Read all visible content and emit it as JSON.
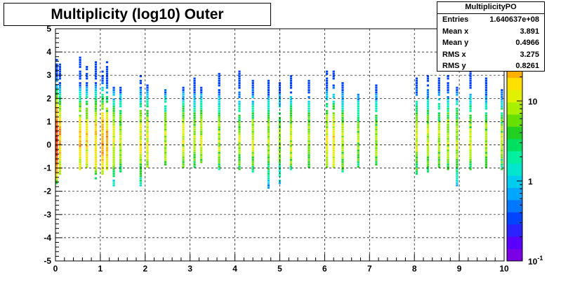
{
  "chart_data": {
    "type": "heatmap",
    "title": "Multiplicity (log10) Outer",
    "xlim": [
      0,
      10
    ],
    "ylim": [
      -5,
      5
    ],
    "x_ticks": [
      "0",
      "1",
      "2",
      "3",
      "4",
      "5",
      "6",
      "7",
      "8",
      "9",
      "10"
    ],
    "y_ticks": [
      "-5",
      "-4",
      "-3",
      "-2",
      "-1",
      "0",
      "1",
      "2",
      "3",
      "4",
      "5"
    ],
    "grid": true,
    "colorbar": {
      "scale": "log",
      "labels": [
        "10",
        "1",
        "10^-1"
      ]
    },
    "columns": [
      {
        "x": 0.03,
        "y_min": -1.7,
        "y_max": 3.7,
        "peak": 60
      },
      {
        "x": 0.1,
        "y_min": -1.3,
        "y_max": 3.5,
        "peak": 25
      },
      {
        "x": 0.55,
        "y_min": -1.1,
        "y_max": 3.8,
        "peak": 22
      },
      {
        "x": 0.7,
        "y_min": -1.0,
        "y_max": 3.4,
        "peak": 18
      },
      {
        "x": 0.9,
        "y_min": -1.5,
        "y_max": 3.6,
        "peak": 20
      },
      {
        "x": 1.05,
        "y_min": -1.3,
        "y_max": 3.2,
        "peak": 30
      },
      {
        "x": 1.15,
        "y_min": -1.1,
        "y_max": 3.6,
        "peak": 25
      },
      {
        "x": 1.3,
        "y_min": -1.8,
        "y_max": 2.5,
        "peak": 12
      },
      {
        "x": 1.45,
        "y_min": -1.2,
        "y_max": 2.5,
        "peak": 10
      },
      {
        "x": 1.9,
        "y_min": -1.8,
        "y_max": 3.1,
        "peak": 14
      },
      {
        "x": 2.05,
        "y_min": -1.0,
        "y_max": 2.6,
        "peak": 12
      },
      {
        "x": 2.45,
        "y_min": -0.9,
        "y_max": 2.4,
        "peak": 10
      },
      {
        "x": 2.85,
        "y_min": -1.0,
        "y_max": 2.5,
        "peak": 11
      },
      {
        "x": 3.1,
        "y_min": -1.0,
        "y_max": 2.9,
        "peak": 8
      },
      {
        "x": 3.25,
        "y_min": -0.8,
        "y_max": 2.5,
        "peak": 10
      },
      {
        "x": 3.65,
        "y_min": -1.1,
        "y_max": 3.1,
        "peak": 9
      },
      {
        "x": 4.1,
        "y_min": -1.1,
        "y_max": 3.2,
        "peak": 8
      },
      {
        "x": 4.4,
        "y_min": -1.2,
        "y_max": 2.8,
        "peak": 9
      },
      {
        "x": 4.75,
        "y_min": -1.9,
        "y_max": 2.8,
        "peak": 8
      },
      {
        "x": 5.0,
        "y_min": -1.7,
        "y_max": 2.7,
        "peak": 7
      },
      {
        "x": 5.25,
        "y_min": -1.1,
        "y_max": 3.0,
        "peak": 10
      },
      {
        "x": 5.65,
        "y_min": -1.0,
        "y_max": 2.8,
        "peak": 8
      },
      {
        "x": 6.05,
        "y_min": -1.0,
        "y_max": 3.3,
        "peak": 14
      },
      {
        "x": 6.2,
        "y_min": -1.0,
        "y_max": 3.2,
        "peak": 16
      },
      {
        "x": 6.4,
        "y_min": -1.2,
        "y_max": 2.7,
        "peak": 9
      },
      {
        "x": 6.75,
        "y_min": -1.0,
        "y_max": 2.2,
        "peak": 7
      },
      {
        "x": 7.15,
        "y_min": -0.9,
        "y_max": 2.6,
        "peak": 8
      },
      {
        "x": 8.05,
        "y_min": -1.3,
        "y_max": 2.9,
        "peak": 10
      },
      {
        "x": 8.3,
        "y_min": -1.2,
        "y_max": 3.0,
        "peak": 9
      },
      {
        "x": 8.55,
        "y_min": -1.0,
        "y_max": 3.0,
        "peak": 9
      },
      {
        "x": 8.75,
        "y_min": -1.1,
        "y_max": 3.0,
        "peak": 10
      },
      {
        "x": 8.95,
        "y_min": -1.8,
        "y_max": 2.6,
        "peak": 8
      },
      {
        "x": 9.25,
        "y_min": -1.1,
        "y_max": 3.2,
        "peak": 9
      },
      {
        "x": 9.6,
        "y_min": -1.0,
        "y_max": 2.9,
        "peak": 8
      },
      {
        "x": 9.95,
        "y_min": -1.1,
        "y_max": 2.4,
        "peak": 8
      }
    ]
  },
  "stats": {
    "name": "MultiplicityPO",
    "rows": [
      {
        "label": "Entries",
        "value": "1.640637e+08"
      },
      {
        "label": "Mean x",
        "value": "3.891"
      },
      {
        "label": "Mean y",
        "value": "0.4966"
      },
      {
        "label": "RMS x",
        "value": "3.275"
      },
      {
        "label": "RMS y",
        "value": "0.8261"
      }
    ]
  }
}
